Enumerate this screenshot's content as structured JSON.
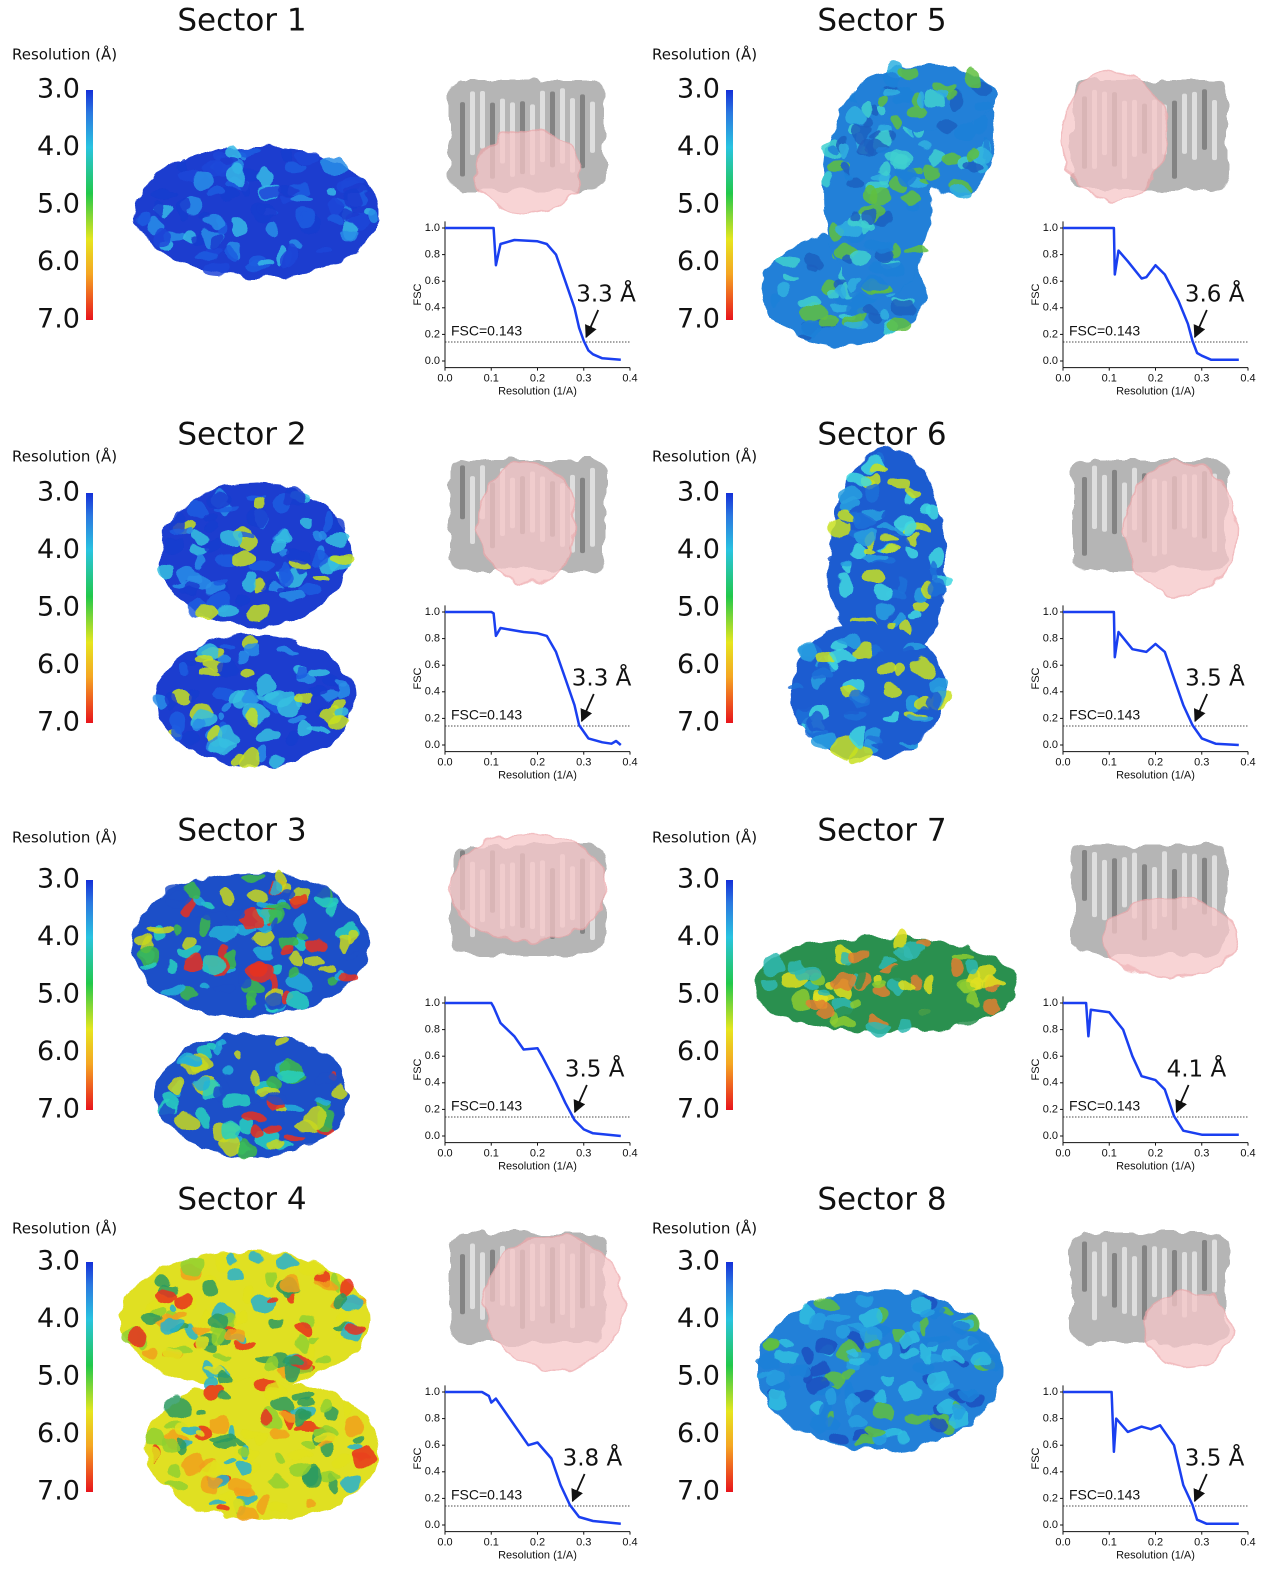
{
  "chart_data": [
    {
      "type": "line",
      "title": "Sector 1",
      "colorbar": {
        "label": "Resolution (Å)",
        "lim": [
          3,
          7
        ],
        "ticks": [
          {
            "value": 3,
            "label": "3.0"
          },
          {
            "value": 4,
            "label": "4.0"
          },
          {
            "value": 5,
            "label": "5.0"
          },
          {
            "value": 6,
            "label": "6.0"
          },
          {
            "value": 7,
            "label": "7.0"
          }
        ]
      },
      "xlabel": "Resolution (1/A)",
      "ylabel": "FSC",
      "xlim": [
        0,
        0.4
      ],
      "ylim": [
        -0.05,
        1.05
      ],
      "xticks": [
        {
          "value": 0,
          "label": "0.0"
        },
        0.1,
        0.2,
        0.3,
        0.4
      ],
      "yticks": [
        {
          "value": 0,
          "label": "0.0"
        },
        0.2,
        0.4,
        0.6,
        0.8,
        {
          "value": 1,
          "label": "1.0"
        }
      ],
      "threshold": {
        "value": 0.143,
        "label": "FSC=0.143"
      },
      "resolution_label": "3.3 Å",
      "color": "#1a3ff0",
      "x": [
        0,
        0.105,
        0.11,
        0.12,
        0.15,
        0.2,
        0.22,
        0.24,
        0.26,
        0.28,
        0.29,
        0.3,
        0.31,
        0.32,
        0.34,
        0.38
      ],
      "values": [
        1,
        1,
        0.72,
        0.88,
        0.91,
        0.9,
        0.88,
        0.8,
        0.6,
        0.4,
        0.25,
        0.15,
        0.08,
        0.05,
        0.02,
        0.01
      ]
    },
    {
      "type": "line",
      "title": "Sector 2",
      "colorbar": {
        "label": "Resolution (Å)",
        "lim": [
          3,
          7
        ],
        "ticks": [
          {
            "value": 3,
            "label": "3.0"
          },
          {
            "value": 4,
            "label": "4.0"
          },
          {
            "value": 5,
            "label": "5.0"
          },
          {
            "value": 6,
            "label": "6.0"
          },
          {
            "value": 7,
            "label": "7.0"
          }
        ]
      },
      "xlabel": "Resolution (1/A)",
      "ylabel": "FSC",
      "xlim": [
        0,
        0.4
      ],
      "ylim": [
        -0.05,
        1.05
      ],
      "xticks": [
        {
          "value": 0,
          "label": "0.0"
        },
        0.1,
        0.2,
        0.3,
        0.4
      ],
      "yticks": [
        {
          "value": 0,
          "label": "0.0"
        },
        0.2,
        0.4,
        0.6,
        0.8,
        {
          "value": 1,
          "label": "1.0"
        }
      ],
      "threshold": {
        "value": 0.143,
        "label": "FSC=0.143"
      },
      "resolution_label": "3.3 Å",
      "color": "#1a3ff0",
      "x": [
        0,
        0.1,
        0.105,
        0.11,
        0.12,
        0.17,
        0.2,
        0.22,
        0.24,
        0.26,
        0.28,
        0.29,
        0.31,
        0.34,
        0.36,
        0.37,
        0.38
      ],
      "values": [
        1,
        1,
        0.99,
        0.82,
        0.88,
        0.85,
        0.84,
        0.82,
        0.7,
        0.5,
        0.3,
        0.15,
        0.05,
        0.02,
        0.01,
        0.03,
        0
      ]
    },
    {
      "type": "line",
      "title": "Sector 3",
      "colorbar": {
        "label": "Resolution (Å)",
        "lim": [
          3,
          7
        ],
        "ticks": [
          {
            "value": 3,
            "label": "3.0"
          },
          {
            "value": 4,
            "label": "4.0"
          },
          {
            "value": 5,
            "label": "5.0"
          },
          {
            "value": 6,
            "label": "6.0"
          },
          {
            "value": 7,
            "label": "7.0"
          }
        ]
      },
      "xlabel": "Resolution (1/A)",
      "ylabel": "FSC",
      "xlim": [
        0,
        0.4
      ],
      "ylim": [
        -0.05,
        1.05
      ],
      "xticks": [
        {
          "value": 0,
          "label": "0.0"
        },
        0.1,
        0.2,
        0.3,
        0.4
      ],
      "yticks": [
        {
          "value": 0,
          "label": "0.0"
        },
        0.2,
        0.4,
        0.6,
        0.8,
        {
          "value": 1,
          "label": "1.0"
        }
      ],
      "threshold": {
        "value": 0.143,
        "label": "FSC=0.143"
      },
      "resolution_label": "3.5 Å",
      "color": "#1a3ff0",
      "x": [
        0,
        0.1,
        0.105,
        0.12,
        0.15,
        0.17,
        0.2,
        0.21,
        0.24,
        0.26,
        0.28,
        0.3,
        0.32,
        0.38
      ],
      "values": [
        1,
        1,
        0.97,
        0.85,
        0.75,
        0.65,
        0.66,
        0.6,
        0.4,
        0.25,
        0.12,
        0.05,
        0.02,
        0
      ]
    },
    {
      "type": "line",
      "title": "Sector 4",
      "colorbar": {
        "label": "Resolution (Å)",
        "lim": [
          3,
          7
        ],
        "ticks": [
          {
            "value": 3,
            "label": "3.0"
          },
          {
            "value": 4,
            "label": "4.0"
          },
          {
            "value": 5,
            "label": "5.0"
          },
          {
            "value": 6,
            "label": "6.0"
          },
          {
            "value": 7,
            "label": "7.0"
          }
        ]
      },
      "xlabel": "Resolution (1/A)",
      "ylabel": "FSC",
      "xlim": [
        0,
        0.4
      ],
      "ylim": [
        -0.05,
        1.05
      ],
      "xticks": [
        {
          "value": 0,
          "label": "0.0"
        },
        0.1,
        0.2,
        0.3,
        0.4
      ],
      "yticks": [
        {
          "value": 0,
          "label": "0.0"
        },
        0.2,
        0.4,
        0.6,
        0.8,
        {
          "value": 1,
          "label": "1.0"
        }
      ],
      "threshold": {
        "value": 0.143,
        "label": "FSC=0.143"
      },
      "resolution_label": "3.8 Å",
      "color": "#1a3ff0",
      "x": [
        0,
        0.08,
        0.095,
        0.1,
        0.11,
        0.14,
        0.18,
        0.2,
        0.23,
        0.25,
        0.27,
        0.29,
        0.32,
        0.38
      ],
      "values": [
        1,
        1,
        0.97,
        0.92,
        0.95,
        0.8,
        0.6,
        0.62,
        0.5,
        0.3,
        0.15,
        0.06,
        0.03,
        0.01
      ]
    },
    {
      "type": "line",
      "title": "Sector 5",
      "colorbar": {
        "label": "Resolution (Å)",
        "lim": [
          3,
          7
        ],
        "ticks": [
          {
            "value": 3,
            "label": "3.0"
          },
          {
            "value": 4,
            "label": "4.0"
          },
          {
            "value": 5,
            "label": "5.0"
          },
          {
            "value": 6,
            "label": "6.0"
          },
          {
            "value": 7,
            "label": "7.0"
          }
        ]
      },
      "xlabel": "Resolution (1/A)",
      "ylabel": "FSC",
      "xlim": [
        0,
        0.4
      ],
      "ylim": [
        -0.05,
        1.05
      ],
      "xticks": [
        {
          "value": 0,
          "label": "0.0"
        },
        0.1,
        0.2,
        0.3,
        0.4
      ],
      "yticks": [
        {
          "value": 0,
          "label": "0.0"
        },
        0.2,
        0.4,
        0.6,
        0.8,
        {
          "value": 1,
          "label": "1.0"
        }
      ],
      "threshold": {
        "value": 0.143,
        "label": "FSC=0.143"
      },
      "resolution_label": "3.6 Å",
      "color": "#1a3ff0",
      "x": [
        0,
        0.11,
        0.112,
        0.12,
        0.14,
        0.17,
        0.18,
        0.2,
        0.22,
        0.25,
        0.27,
        0.28,
        0.29,
        0.3,
        0.32,
        0.38
      ],
      "values": [
        1,
        1,
        0.65,
        0.83,
        0.75,
        0.62,
        0.63,
        0.72,
        0.65,
        0.45,
        0.28,
        0.15,
        0.06,
        0.04,
        0.01,
        0.01
      ]
    },
    {
      "type": "line",
      "title": "Sector 6",
      "colorbar": {
        "label": "Resolution (Å)",
        "lim": [
          3,
          7
        ],
        "ticks": [
          {
            "value": 3,
            "label": "3.0"
          },
          {
            "value": 4,
            "label": "4.0"
          },
          {
            "value": 5,
            "label": "5.0"
          },
          {
            "value": 6,
            "label": "6.0"
          },
          {
            "value": 7,
            "label": "7.0"
          }
        ]
      },
      "xlabel": "Resolution (1/A)",
      "ylabel": "FSC",
      "xlim": [
        0,
        0.4
      ],
      "ylim": [
        -0.05,
        1.05
      ],
      "xticks": [
        {
          "value": 0,
          "label": "0.0"
        },
        0.1,
        0.2,
        0.3,
        0.4
      ],
      "yticks": [
        {
          "value": 0,
          "label": "0.0"
        },
        0.2,
        0.4,
        0.6,
        0.8,
        {
          "value": 1,
          "label": "1.0"
        }
      ],
      "threshold": {
        "value": 0.143,
        "label": "FSC=0.143"
      },
      "resolution_label": "3.5 Å",
      "color": "#1a3ff0",
      "x": [
        0,
        0.11,
        0.112,
        0.12,
        0.15,
        0.18,
        0.2,
        0.22,
        0.24,
        0.26,
        0.28,
        0.3,
        0.33,
        0.38
      ],
      "values": [
        1,
        1,
        0.66,
        0.85,
        0.72,
        0.7,
        0.76,
        0.7,
        0.5,
        0.3,
        0.15,
        0.05,
        0.01,
        0
      ]
    },
    {
      "type": "line",
      "title": "Sector 7",
      "colorbar": {
        "label": "Resolution (Å)",
        "lim": [
          3,
          7
        ],
        "ticks": [
          {
            "value": 3,
            "label": "3.0"
          },
          {
            "value": 4,
            "label": "4.0"
          },
          {
            "value": 5,
            "label": "5.0"
          },
          {
            "value": 6,
            "label": "6.0"
          },
          {
            "value": 7,
            "label": "7.0"
          }
        ]
      },
      "xlabel": "Resolution (1/A)",
      "ylabel": "FSC",
      "xlim": [
        0,
        0.4
      ],
      "ylim": [
        -0.05,
        1.05
      ],
      "xticks": [
        {
          "value": 0,
          "label": "0.0"
        },
        0.1,
        0.2,
        0.3,
        0.4
      ],
      "yticks": [
        {
          "value": 0,
          "label": "0.0"
        },
        0.2,
        0.4,
        0.6,
        0.8,
        {
          "value": 1,
          "label": "1.0"
        }
      ],
      "threshold": {
        "value": 0.143,
        "label": "FSC=0.143"
      },
      "resolution_label": "4.1 Å",
      "color": "#1a3ff0",
      "x": [
        0,
        0.05,
        0.055,
        0.06,
        0.1,
        0.13,
        0.15,
        0.17,
        0.2,
        0.22,
        0.24,
        0.26,
        0.3,
        0.38
      ],
      "values": [
        1,
        1,
        0.75,
        0.95,
        0.93,
        0.8,
        0.6,
        0.45,
        0.42,
        0.35,
        0.15,
        0.04,
        0.01,
        0.01
      ]
    },
    {
      "type": "line",
      "title": "Sector 8",
      "colorbar": {
        "label": "Resolution (Å)",
        "lim": [
          3,
          7
        ],
        "ticks": [
          {
            "value": 3,
            "label": "3.0"
          },
          {
            "value": 4,
            "label": "4.0"
          },
          {
            "value": 5,
            "label": "5.0"
          },
          {
            "value": 6,
            "label": "6.0"
          },
          {
            "value": 7,
            "label": "7.0"
          }
        ]
      },
      "xlabel": "Resolution (1/A)",
      "ylabel": "FSC",
      "xlim": [
        0,
        0.4
      ],
      "ylim": [
        -0.05,
        1.05
      ],
      "xticks": [
        {
          "value": 0,
          "label": "0.0"
        },
        0.1,
        0.2,
        0.3,
        0.4
      ],
      "yticks": [
        {
          "value": 0,
          "label": "0.0"
        },
        0.2,
        0.4,
        0.6,
        0.8,
        {
          "value": 1,
          "label": "1.0"
        }
      ],
      "threshold": {
        "value": 0.143,
        "label": "FSC=0.143"
      },
      "resolution_label": "3.5 Å",
      "color": "#1a3ff0",
      "x": [
        0,
        0.105,
        0.11,
        0.115,
        0.14,
        0.17,
        0.19,
        0.21,
        0.24,
        0.26,
        0.28,
        0.29,
        0.31,
        0.38
      ],
      "values": [
        1,
        1,
        0.55,
        0.8,
        0.7,
        0.74,
        0.72,
        0.75,
        0.6,
        0.3,
        0.15,
        0.04,
        0.01,
        0.01
      ]
    }
  ]
}
